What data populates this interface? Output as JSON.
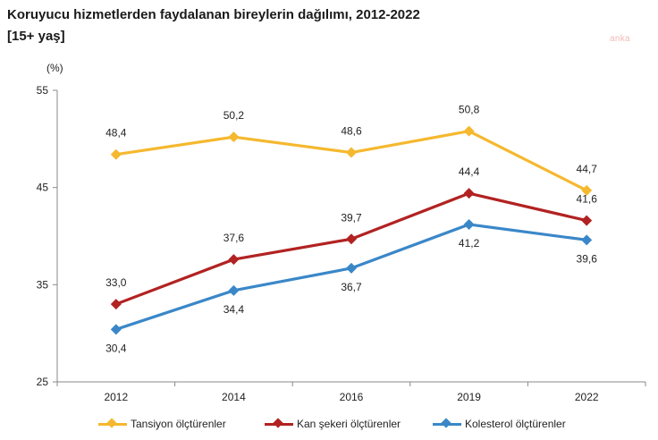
{
  "chart_data": {
    "type": "line",
    "title": "Koruyucu hizmetlerden faydalanan bireylerin dağılımı, 2012-2022",
    "subtitle": "[15+ yaş]",
    "ylabel": "(%)",
    "xlabel": "",
    "categories": [
      "2012",
      "2014",
      "2016",
      "2019",
      "2022"
    ],
    "ylim": [
      25,
      55
    ],
    "yticks": [
      25,
      35,
      45,
      55
    ],
    "series": [
      {
        "name": "Tansiyon ölçtürenler",
        "color": "#F5B82E",
        "values": [
          48.4,
          50.2,
          48.6,
          50.8,
          44.7
        ],
        "labels": [
          "48,4",
          "50,2",
          "48,6",
          "50,8",
          "44,7"
        ]
      },
      {
        "name": "Kan şekeri ölçtürenler",
        "color": "#B22222",
        "values": [
          33.0,
          37.6,
          39.7,
          44.4,
          41.6
        ],
        "labels": [
          "33,0",
          "37,6",
          "39,7",
          "44,4",
          "41,6"
        ]
      },
      {
        "name": "Kolesterol ölçtürenler",
        "color": "#3A87C8",
        "values": [
          30.4,
          34.4,
          36.7,
          41.2,
          39.6
        ],
        "labels": [
          "30,4",
          "34,4",
          "36,7",
          "41,2",
          "39,6"
        ]
      }
    ],
    "legend_position": "bottom"
  },
  "watermark": "anka"
}
